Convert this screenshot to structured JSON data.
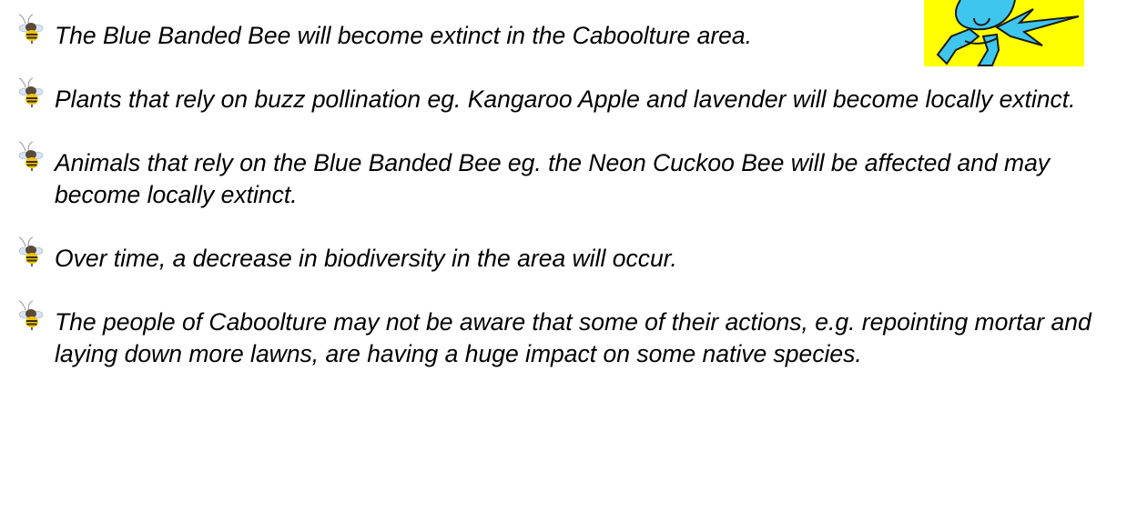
{
  "bullets": [
    "The Blue Banded Bee will become extinct in the Caboolture area.",
    "Plants that rely on buzz pollination eg. Kangaroo Apple and lavender will become locally extinct.",
    "Animals that rely on the Blue Banded Bee eg. the Neon Cuckoo Bee will be affected and may become locally extinct.",
    "Over time, a decrease in biodiversity in the area will occur.",
    "The people of Caboolture may not be aware that some of their actions, e.g. repointing mortar and laying down more lawns, are having a huge impact on some native species."
  ]
}
